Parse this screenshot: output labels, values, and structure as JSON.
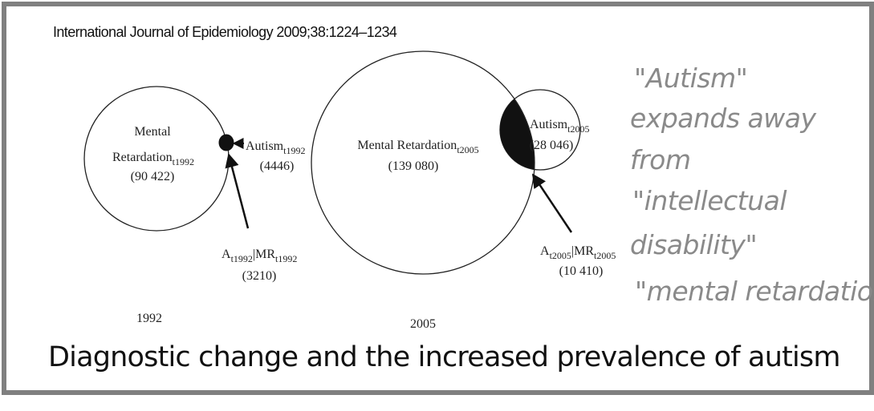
{
  "citation": "International Journal of Epidemiology 2009;38:1224–1234",
  "panel_1992": {
    "year": "1992",
    "mr_line1": "Mental",
    "mr_line2": "Retardation",
    "mr_sub": "t1992",
    "mr_count": "(90 422)",
    "autism": "Autism",
    "autism_sub": "t1992",
    "autism_count": "(4446)",
    "overlap_a": "A",
    "overlap_a_sub": "t1992",
    "overlap_mr": "|MR",
    "overlap_mr_sub": "t1992",
    "overlap_count": "(3210)"
  },
  "panel_2005": {
    "year": "2005",
    "mr_label": "Mental Retardation",
    "mr_sub": "t2005",
    "mr_count": "(139 080)",
    "autism": "Autism",
    "autism_sub": "t2005",
    "autism_count": "(28 046)",
    "overlap_a": "A",
    "overlap_a_sub": "t2005",
    "overlap_mr": "|MR",
    "overlap_mr_sub": "t2005",
    "overlap_count": "(10 410)"
  },
  "annotation_lines": [
    "\"Autism\"",
    "expands away",
    "from",
    "\"intellectual",
    "disability\"",
    "\"mental retardation\""
  ],
  "caption": "Diagnostic change and the increased prevalence of autism",
  "colors": {
    "frame": "#808080",
    "annotation": "#8a8a8a",
    "ink": "#111111"
  }
}
